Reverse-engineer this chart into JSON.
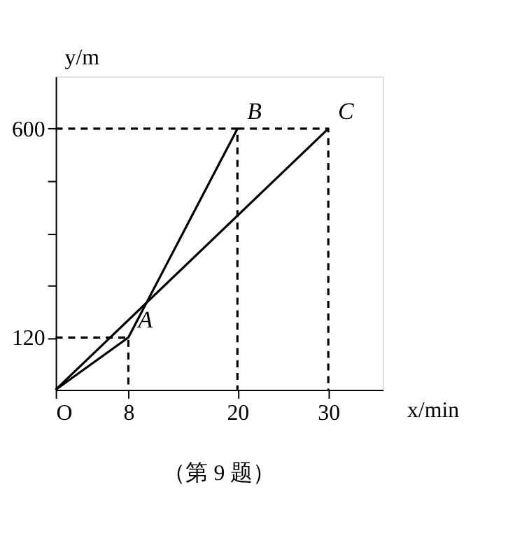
{
  "chart_data": {
    "type": "line",
    "xlabel": "x/min",
    "ylabel": "y/m",
    "xlim": [
      0,
      36
    ],
    "ylim": [
      0,
      720
    ],
    "xticks": [
      {
        "value": 0,
        "label": "O"
      },
      8,
      20,
      30
    ],
    "yticks": [
      120,
      {
        "value": 240,
        "label": null
      },
      {
        "value": 360,
        "label": null
      },
      {
        "value": 480,
        "label": null
      },
      600
    ],
    "grid": false,
    "legend": false,
    "marker": "none",
    "series": [
      {
        "color": "#000000",
        "x": [
          0,
          8,
          20
        ],
        "values": [
          0,
          120,
          600
        ],
        "line_style": "solid"
      },
      {
        "color": "#000000",
        "x": [
          0,
          30
        ],
        "values": [
          0,
          600
        ],
        "line_style": "solid"
      },
      {
        "color": "#000000",
        "x": [
          0,
          8,
          8
        ],
        "values": [
          120,
          120,
          0
        ],
        "line_style": "dashed"
      },
      {
        "color": "#000000",
        "x": [
          0,
          20,
          20
        ],
        "values": [
          600,
          600,
          0
        ],
        "line_style": "dashed"
      },
      {
        "color": "#000000",
        "x": [
          20,
          30,
          30
        ],
        "values": [
          600,
          600,
          0
        ],
        "line_style": "dashed"
      }
    ],
    "annotations": [
      {
        "text": "A",
        "x": 8,
        "y": 120
      },
      {
        "text": "B",
        "x": 20,
        "y": 600
      },
      {
        "text": "C",
        "x": 30,
        "y": 600
      },
      "（第 9 题）"
    ]
  }
}
